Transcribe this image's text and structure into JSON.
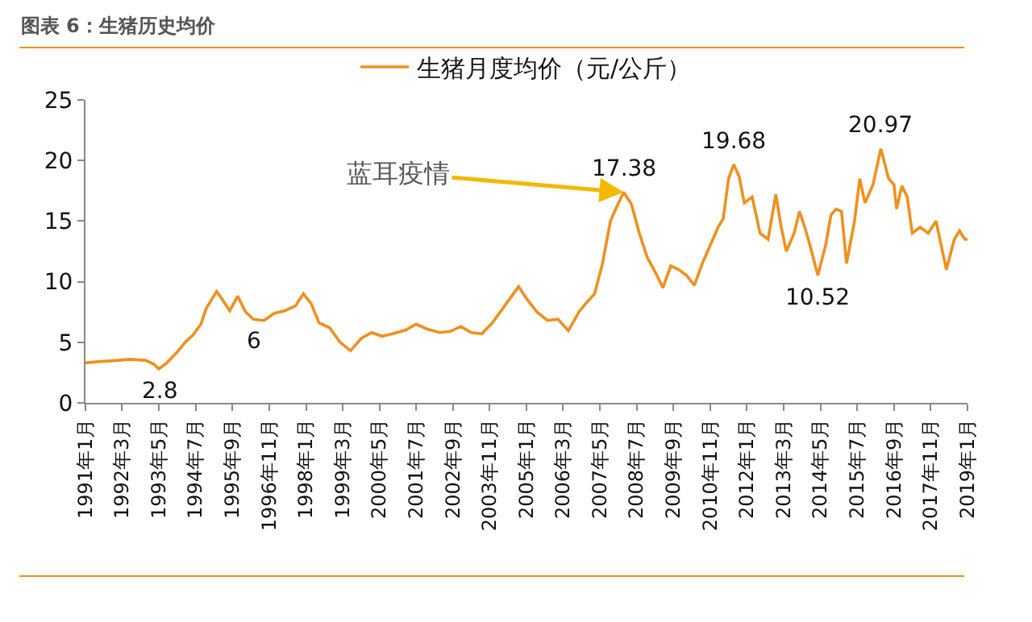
{
  "chart_data": {
    "type": "line",
    "title": "图表 6：生猪历史均价",
    "x": [
      "1991-01",
      "1991-06",
      "1992-01",
      "1992-06",
      "1992-12",
      "1993-03",
      "1993-05",
      "1993-08",
      "1993-12",
      "1994-03",
      "1994-06",
      "1994-09",
      "1994-11",
      "1995-01",
      "1995-03",
      "1995-05",
      "1995-08",
      "1995-11",
      "1996-02",
      "1996-05",
      "1996-09",
      "1997-01",
      "1997-05",
      "1997-09",
      "1997-12",
      "1998-03",
      "1998-06",
      "1998-10",
      "1999-02",
      "1999-06",
      "1999-10",
      "2000-02",
      "2000-06",
      "2000-10",
      "2001-03",
      "2001-07",
      "2001-11",
      "2002-04",
      "2002-08",
      "2002-12",
      "2003-04",
      "2003-08",
      "2003-12",
      "2004-04",
      "2004-08",
      "2004-10",
      "2005-01",
      "2005-05",
      "2005-09",
      "2006-01",
      "2006-05",
      "2006-09",
      "2006-12",
      "2007-03",
      "2007-06",
      "2007-09",
      "2007-11",
      "2008-02",
      "2008-05",
      "2008-08",
      "2008-11",
      "2009-02",
      "2009-05",
      "2009-08",
      "2009-11",
      "2010-02",
      "2010-05",
      "2010-08",
      "2010-11",
      "2011-02",
      "2011-04",
      "2011-06",
      "2011-08",
      "2011-10",
      "2011-12",
      "2012-03",
      "2012-06",
      "2012-09",
      "2012-12",
      "2013-02",
      "2013-04",
      "2013-07",
      "2013-09",
      "2013-11",
      "2014-01",
      "2014-04",
      "2014-07",
      "2014-09",
      "2014-11",
      "2015-01",
      "2015-03",
      "2015-06",
      "2015-08",
      "2015-10",
      "2016-01",
      "2016-04",
      "2016-07",
      "2016-09",
      "2016-10",
      "2016-12",
      "2017-02",
      "2017-04",
      "2017-07",
      "2017-10",
      "2018-01",
      "2018-05",
      "2018-08",
      "2018-10",
      "2018-12",
      "2019-01"
    ],
    "series": [
      {
        "name": "生猪月度均价（元/公斤）",
        "color": "#f0901e",
        "values": [
          3.3,
          3.4,
          3.5,
          3.6,
          3.5,
          3.2,
          2.8,
          3.3,
          4.2,
          5.0,
          5.6,
          6.5,
          7.8,
          8.5,
          9.2,
          8.6,
          7.6,
          8.8,
          7.5,
          6.9,
          6.8,
          7.4,
          7.6,
          8.0,
          9.0,
          8.2,
          6.6,
          6.2,
          5.0,
          4.3,
          5.3,
          5.8,
          5.5,
          5.7,
          6.0,
          6.5,
          6.1,
          5.8,
          5.9,
          6.3,
          5.8,
          5.7,
          6.6,
          7.8,
          9.0,
          9.6,
          8.6,
          7.5,
          6.8,
          6.9,
          5.96,
          7.5,
          8.3,
          9.0,
          11.5,
          15.0,
          16.0,
          17.38,
          16.4,
          14.0,
          12.0,
          10.8,
          9.5,
          11.3,
          11.0,
          10.5,
          9.7,
          11.5,
          13.0,
          14.5,
          15.2,
          18.5,
          19.68,
          18.7,
          16.5,
          17.0,
          14.0,
          13.5,
          17.2,
          14.5,
          12.5,
          14.0,
          15.8,
          14.5,
          13.0,
          10.52,
          13.0,
          15.5,
          16.0,
          15.8,
          11.5,
          15.0,
          18.5,
          16.5,
          18.0,
          20.97,
          18.5,
          18.0,
          16.0,
          17.9,
          17.0,
          14.0,
          14.5,
          14.0,
          15.0,
          11.0,
          13.5,
          14.2,
          13.5,
          13.5
        ]
      }
    ],
    "xlim": [
      "1991-01",
      "2019-01"
    ],
    "xticks": [
      {
        "value": "1991-01",
        "label": "1991年1月"
      },
      {
        "value": "1992-03",
        "label": "1992年3月"
      },
      {
        "value": "1993-05",
        "label": "1993年5月"
      },
      {
        "value": "1994-07",
        "label": "1994年7月"
      },
      {
        "value": "1995-09",
        "label": "1995年9月"
      },
      {
        "value": "1996-11",
        "label": "1996年11月"
      },
      {
        "value": "1998-01",
        "label": "1998年1月"
      },
      {
        "value": "1999-03",
        "label": "1999年3月"
      },
      {
        "value": "2000-05",
        "label": "2000年5月"
      },
      {
        "value": "2001-07",
        "label": "2001年7月"
      },
      {
        "value": "2002-09",
        "label": "2002年9月"
      },
      {
        "value": "2003-11",
        "label": "2003年11月"
      },
      {
        "value": "2005-01",
        "label": "2005年1月"
      },
      {
        "value": "2006-03",
        "label": "2006年3月"
      },
      {
        "value": "2007-05",
        "label": "2007年5月"
      },
      {
        "value": "2008-07",
        "label": "2008年7月"
      },
      {
        "value": "2009-09",
        "label": "2009年9月"
      },
      {
        "value": "2010-11",
        "label": "2010年11月"
      },
      {
        "value": "2012-01",
        "label": "2012年1月"
      },
      {
        "value": "2013-03",
        "label": "2013年3月"
      },
      {
        "value": "2014-05",
        "label": "2014年5月"
      },
      {
        "value": "2015-07",
        "label": "2015年7月"
      },
      {
        "value": "2016-09",
        "label": "2016年9月"
      },
      {
        "value": "2017-11",
        "label": "2017年11月"
      },
      {
        "value": "2019-01",
        "label": "2019年1月"
      }
    ],
    "ylim": [
      0,
      25
    ],
    "yticks": [
      0,
      5,
      10,
      15,
      20,
      25
    ],
    "legend": "top",
    "grid": false,
    "annotations": [
      {
        "text": "蓝耳疫情",
        "x": "2008-02",
        "y": 17.38
      },
      {
        "text": "17.38",
        "x": "2008-02",
        "y": 17.38
      },
      {
        "text": "19.68",
        "x": "2011-08",
        "y": 19.68
      },
      {
        "text": "20.97",
        "x": "2016-04",
        "y": 20.97
      },
      {
        "text": "2.8",
        "x": "1993-05",
        "y": 2.8
      },
      {
        "text": "6",
        "x": "1996-05",
        "y": 6.9
      },
      {
        "text": "10.52",
        "x": "2014-04",
        "y": 10.52
      }
    ]
  }
}
